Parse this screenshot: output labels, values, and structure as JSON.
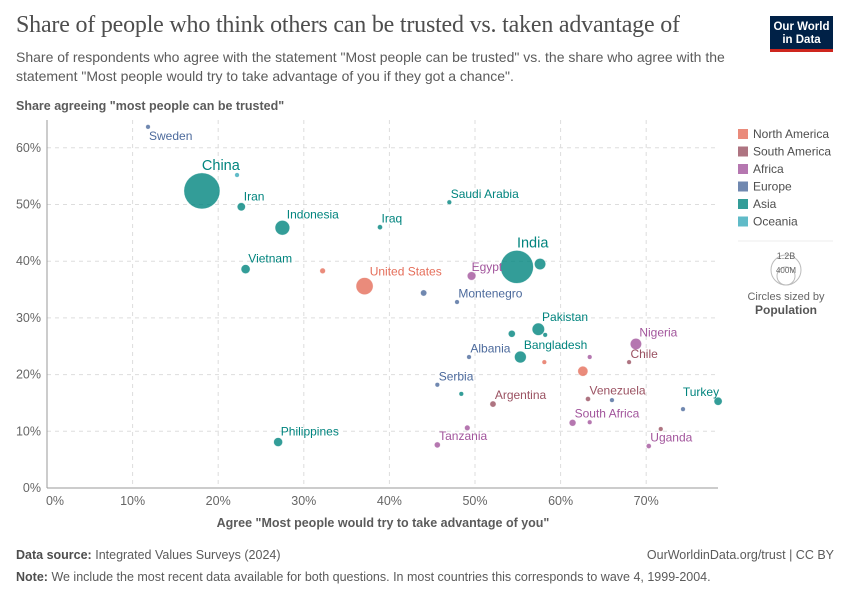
{
  "header": {
    "title": "Share of people who think others can be trusted vs. taken advantage of",
    "subtitle": "Share of respondents who agree with the statement \"Most people can be trusted\" vs. the share who agree with the statement \"Most people would try to take advantage of you if they got a chance\".",
    "logo": "Our World in Data"
  },
  "footer": {
    "source_label": "Data source:",
    "source": "Integrated Values Surveys (2024)",
    "link": "OurWorldinData.org/trust | CC BY",
    "note_label": "Note:",
    "note": "We include the most recent data available for both questions. In most countries this corresponds to wave 4, 1999-2004."
  },
  "chart_data": {
    "type": "scatter",
    "ylabel": "Share agreeing \"most people can be trusted\"",
    "xlabel": "Agree \"Most people would try to take advantage of you\"",
    "xlim": [
      0,
      78.5
    ],
    "ylim": [
      0,
      65
    ],
    "xticks": [
      "0%",
      "10%",
      "20%",
      "30%",
      "40%",
      "50%",
      "60%",
      "70%"
    ],
    "yticks": [
      "0%",
      "10%",
      "20%",
      "30%",
      "40%",
      "50%",
      "60%"
    ],
    "grid": true,
    "legend_placement": "right",
    "regions": [
      {
        "name": "North America",
        "color": "#E56E5A"
      },
      {
        "name": "South America",
        "color": "#9A5161"
      },
      {
        "name": "Africa",
        "color": "#A2559C"
      },
      {
        "name": "Europe",
        "color": "#4C6A9C"
      },
      {
        "name": "Asia",
        "color": "#00847E"
      },
      {
        "name": "Oceania",
        "color": "#38AABA"
      }
    ],
    "size_legend": {
      "large": "1.2B",
      "small": "400M",
      "caption": "Circles sized by",
      "variable": "Population"
    },
    "points": [
      {
        "label": "Sweden",
        "region": "Europe",
        "x": 11.8,
        "y": 63.7,
        "pop": 9
      },
      {
        "label": "China",
        "region": "Asia",
        "x": 18.1,
        "y": 52.4,
        "pop": 1270
      },
      {
        "label": "",
        "region": "Oceania",
        "x": 22.2,
        "y": 55.2,
        "pop": 4
      },
      {
        "label": "Iran",
        "region": "Asia",
        "x": 22.7,
        "y": 49.6,
        "pop": 66
      },
      {
        "label": "Indonesia",
        "region": "Asia",
        "x": 27.5,
        "y": 45.9,
        "pop": 210
      },
      {
        "label": "Iraq",
        "region": "Asia",
        "x": 38.9,
        "y": 46.0,
        "pop": 25
      },
      {
        "label": "Vietnam",
        "region": "Asia",
        "x": 23.2,
        "y": 38.6,
        "pop": 80
      },
      {
        "label": "",
        "region": "North America",
        "x": 32.2,
        "y": 38.3,
        "pop": 31
      },
      {
        "label": "United States",
        "region": "North America",
        "x": 37.1,
        "y": 35.6,
        "pop": 285
      },
      {
        "label": "Saudi Arabia",
        "region": "Asia",
        "x": 47.0,
        "y": 50.4,
        "pop": 21
      },
      {
        "label": "",
        "region": "Europe",
        "x": 44.0,
        "y": 34.4,
        "pop": 38
      },
      {
        "label": "Montenegro",
        "region": "Europe",
        "x": 47.9,
        "y": 32.8,
        "pop": 0.6
      },
      {
        "label": "Egypt",
        "region": "Africa",
        "x": 49.6,
        "y": 37.4,
        "pop": 72
      },
      {
        "label": "India",
        "region": "Asia",
        "x": 54.9,
        "y": 39.0,
        "pop": 1060
      },
      {
        "label": "",
        "region": "Asia",
        "x": 57.6,
        "y": 39.5,
        "pop": 125
      },
      {
        "label": "Pakistan",
        "region": "Asia",
        "x": 57.4,
        "y": 28.0,
        "pop": 150
      },
      {
        "label": "",
        "region": "Asia",
        "x": 54.3,
        "y": 27.2,
        "pop": 48
      },
      {
        "label": "",
        "region": "Asia",
        "x": 58.2,
        "y": 27.0,
        "pop": 5
      },
      {
        "label": "Albania",
        "region": "Europe",
        "x": 49.3,
        "y": 23.1,
        "pop": 3
      },
      {
        "label": "Bangladesh",
        "region": "Asia",
        "x": 55.3,
        "y": 23.1,
        "pop": 135
      },
      {
        "label": "",
        "region": "North America",
        "x": 58.1,
        "y": 22.2,
        "pop": 4
      },
      {
        "label": "",
        "region": "Africa",
        "x": 63.4,
        "y": 23.1,
        "pop": 12
      },
      {
        "label": "Nigeria",
        "region": "Africa",
        "x": 68.8,
        "y": 25.4,
        "pop": 125
      },
      {
        "label": "Chile",
        "region": "South America",
        "x": 68.0,
        "y": 22.2,
        "pop": 15
      },
      {
        "label": "",
        "region": "North America",
        "x": 62.6,
        "y": 20.6,
        "pop": 100
      },
      {
        "label": "Serbia",
        "region": "Europe",
        "x": 45.6,
        "y": 18.2,
        "pop": 7
      },
      {
        "label": "",
        "region": "Asia",
        "x": 48.4,
        "y": 16.6,
        "pop": 5
      },
      {
        "label": "Argentina",
        "region": "South America",
        "x": 52.1,
        "y": 14.8,
        "pop": 37
      },
      {
        "label": "Venezuela",
        "region": "South America",
        "x": 63.2,
        "y": 15.7,
        "pop": 25
      },
      {
        "label": "",
        "region": "Europe",
        "x": 66.0,
        "y": 15.5,
        "pop": 4
      },
      {
        "label": "Turkey",
        "region": "Asia",
        "x": 78.4,
        "y": 15.3,
        "pop": 65
      },
      {
        "label": "",
        "region": "Europe",
        "x": 74.3,
        "y": 13.9,
        "pop": 4
      },
      {
        "label": "South Africa",
        "region": "Africa",
        "x": 61.4,
        "y": 11.5,
        "pop": 45
      },
      {
        "label": "",
        "region": "Africa",
        "x": 63.4,
        "y": 11.6,
        "pop": 12
      },
      {
        "label": "",
        "region": "South America",
        "x": 71.7,
        "y": 10.4,
        "pop": 15
      },
      {
        "label": "Tanzania",
        "region": "Africa",
        "x": 45.6,
        "y": 7.6,
        "pop": 35
      },
      {
        "label": "",
        "region": "Africa",
        "x": 49.1,
        "y": 10.6,
        "pop": 30
      },
      {
        "label": "Uganda",
        "region": "Africa",
        "x": 70.3,
        "y": 7.4,
        "pop": 25
      },
      {
        "label": "Philippines",
        "region": "Asia",
        "x": 27.0,
        "y": 8.1,
        "pop": 78
      }
    ]
  }
}
